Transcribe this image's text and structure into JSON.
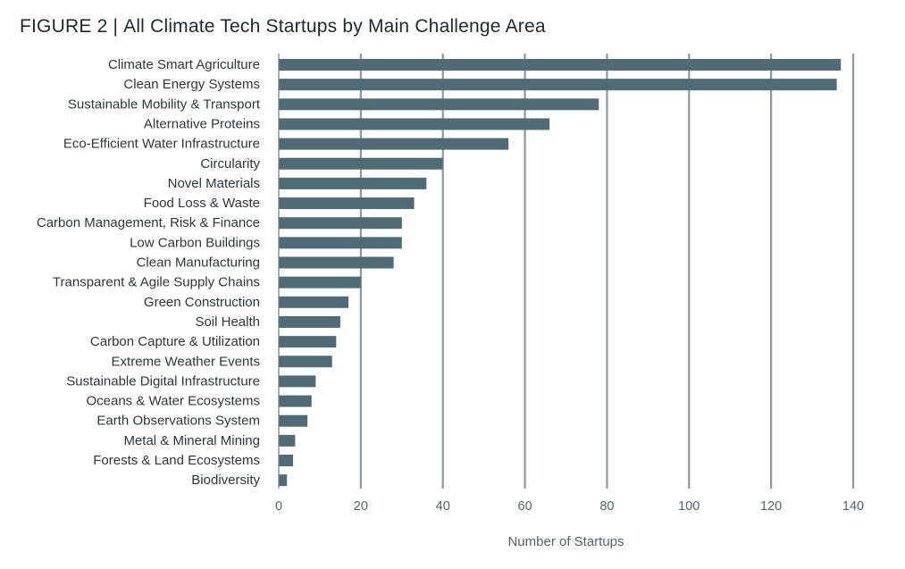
{
  "figure": {
    "label": "FIGURE 2",
    "separator": "|",
    "title": "All Climate Tech Startups by Main Challenge Area"
  },
  "chart_data": {
    "type": "bar",
    "orientation": "horizontal",
    "title": "All Climate Tech Startups by Main Challenge Area",
    "xlabel": "Number of Startups",
    "ylabel": "",
    "xlim": [
      0,
      140
    ],
    "xticks": [
      0,
      20,
      40,
      60,
      80,
      100,
      120,
      140
    ],
    "grid": true,
    "bar_color": "#4e6b76",
    "grid_color": "#8c999e",
    "categories": [
      "Climate Smart Agriculture",
      "Clean Energy Systems",
      "Sustainable Mobility & Transport",
      "Alternative Proteins",
      "Eco-Efficient Water Infrastructure",
      "Circularity",
      "Novel Materials",
      "Food Loss & Waste",
      "Carbon Management, Risk & Finance",
      "Low Carbon Buildings",
      "Clean Manufacturing",
      "Transparent & Agile Supply Chains",
      "Green Construction",
      "Soil Health",
      "Carbon Capture & Utilization",
      "Extreme Weather Events",
      "Sustainable Digital Infrastructure",
      "Oceans & Water Ecosystems",
      "Earth Observations System",
      "Metal & Mineral Mining",
      "Forests & Land Ecosystems",
      "Biodiversity"
    ],
    "values": [
      137,
      136,
      78,
      66,
      56,
      40,
      36,
      33,
      30,
      30,
      28,
      20,
      17,
      15,
      14,
      13,
      9,
      8,
      7,
      4,
      3.5,
      2
    ]
  }
}
